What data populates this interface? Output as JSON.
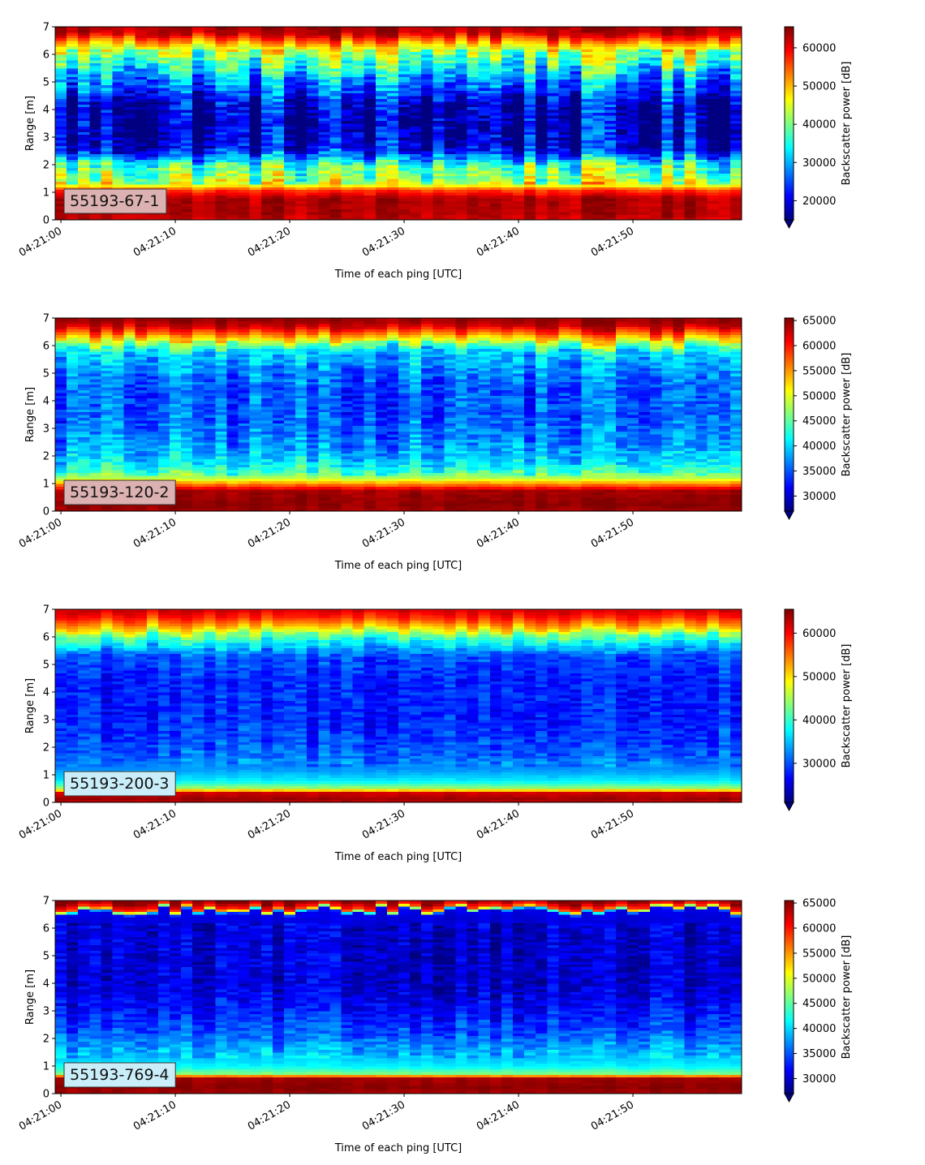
{
  "figure": {
    "xlabel": "Time of each ping [UTC]",
    "ylabel": "Range [m]",
    "colorbar_label": "Backscatter power [dB]"
  },
  "chart_data": [
    {
      "type": "heatmap",
      "annotation": "55193-67-1",
      "label_bg": "#dcb1b1",
      "x_ticks": [
        "04:21:00",
        "04:21:10",
        "04:21:20",
        "04:21:30",
        "04:21:40",
        "04:21:50"
      ],
      "xlim": [
        -0.5,
        59.5
      ],
      "ylim": [
        0,
        7
      ],
      "y_ticks": [
        0,
        1,
        2,
        3,
        4,
        5,
        6,
        7
      ],
      "color_range": [
        15000,
        65500
      ],
      "colorbar_ticks": [
        20000,
        30000,
        40000,
        50000,
        60000
      ],
      "colormap": "jet",
      "grid": false,
      "profile": [
        [
          0.0,
          62000
        ],
        [
          0.25,
          63000
        ],
        [
          0.8,
          63000
        ],
        [
          1.1,
          56000
        ],
        [
          1.3,
          44000
        ],
        [
          1.7,
          40000
        ],
        [
          2.0,
          37000
        ],
        [
          2.3,
          28000
        ],
        [
          2.6,
          20000
        ],
        [
          3.5,
          18000
        ],
        [
          4.2,
          19000
        ],
        [
          4.6,
          24000
        ],
        [
          5.2,
          30000
        ],
        [
          5.6,
          36000
        ],
        [
          6.0,
          41000
        ],
        [
          6.3,
          47000
        ],
        [
          6.5,
          54000
        ],
        [
          6.75,
          62000
        ],
        [
          7.0,
          64000
        ]
      ],
      "noise": 9000,
      "streakiness": 0.9
    },
    {
      "type": "heatmap",
      "annotation": "55193-120-2",
      "label_bg": "#dcb1b1",
      "x_ticks": [
        "04:21:00",
        "04:21:10",
        "04:21:20",
        "04:21:30",
        "04:21:40",
        "04:21:50"
      ],
      "xlim": [
        -0.5,
        59.5
      ],
      "ylim": [
        0,
        7
      ],
      "y_ticks": [
        0,
        1,
        2,
        3,
        4,
        5,
        6,
        7
      ],
      "color_range": [
        27000,
        65500
      ],
      "colorbar_ticks": [
        30000,
        35000,
        40000,
        45000,
        50000,
        55000,
        60000,
        65000
      ],
      "colormap": "jet",
      "grid": false,
      "profile": [
        [
          0.0,
          64000
        ],
        [
          0.25,
          65000
        ],
        [
          0.75,
          64000
        ],
        [
          0.95,
          57000
        ],
        [
          1.15,
          50000
        ],
        [
          1.4,
          44000
        ],
        [
          1.8,
          40000
        ],
        [
          2.5,
          37000
        ],
        [
          3.5,
          35000
        ],
        [
          4.5,
          35000
        ],
        [
          5.2,
          37000
        ],
        [
          5.8,
          40000
        ],
        [
          6.1,
          48000
        ],
        [
          6.4,
          56000
        ],
        [
          6.7,
          63000
        ],
        [
          7.0,
          65000
        ]
      ],
      "noise": 5000,
      "streakiness": 0.6
    },
    {
      "type": "heatmap",
      "annotation": "55193-200-3",
      "label_bg": "#c9eefa",
      "x_ticks": [
        "04:21:00",
        "04:21:10",
        "04:21:20",
        "04:21:30",
        "04:21:40",
        "04:21:50"
      ],
      "xlim": [
        -0.5,
        59.5
      ],
      "ylim": [
        0,
        7
      ],
      "y_ticks": [
        0,
        1,
        2,
        3,
        4,
        5,
        6,
        7
      ],
      "color_range": [
        21000,
        65500
      ],
      "colorbar_ticks": [
        30000,
        40000,
        50000,
        60000
      ],
      "colormap": "jet",
      "grid": false,
      "profile": [
        [
          0.0,
          63000
        ],
        [
          0.15,
          64000
        ],
        [
          0.35,
          62000
        ],
        [
          0.5,
          45000
        ],
        [
          0.8,
          37000
        ],
        [
          1.2,
          33000
        ],
        [
          2.0,
          30000
        ],
        [
          3.0,
          28000
        ],
        [
          4.5,
          28000
        ],
        [
          5.3,
          30000
        ],
        [
          5.8,
          37000
        ],
        [
          6.1,
          43000
        ],
        [
          6.4,
          52000
        ],
        [
          6.7,
          58000
        ],
        [
          7.0,
          62000
        ]
      ],
      "noise": 4500,
      "streakiness": 0.5
    },
    {
      "type": "heatmap",
      "annotation": "55193-769-4",
      "label_bg": "#c9eefa",
      "x_ticks": [
        "04:21:00",
        "04:21:10",
        "04:21:20",
        "04:21:30",
        "04:21:40",
        "04:21:50"
      ],
      "xlim": [
        -0.5,
        59.5
      ],
      "ylim": [
        0,
        7
      ],
      "y_ticks": [
        0,
        1,
        2,
        3,
        4,
        5,
        6,
        7
      ],
      "color_range": [
        27000,
        65500
      ],
      "colorbar_ticks": [
        30000,
        35000,
        40000,
        45000,
        50000,
        55000,
        60000,
        65000
      ],
      "colormap": "jet",
      "grid": false,
      "profile": [
        [
          0.0,
          64000
        ],
        [
          0.25,
          65000
        ],
        [
          0.6,
          64000
        ],
        [
          0.7,
          47000
        ],
        [
          1.0,
          41000
        ],
        [
          1.6,
          38000
        ],
        [
          2.2,
          35000
        ],
        [
          3.0,
          32000
        ],
        [
          4.0,
          30000
        ],
        [
          5.0,
          30000
        ],
        [
          6.0,
          30000
        ],
        [
          6.6,
          31000
        ],
        [
          6.75,
          58000
        ],
        [
          7.0,
          65000
        ]
      ],
      "noise": 4000,
      "streakiness": 0.5
    }
  ]
}
